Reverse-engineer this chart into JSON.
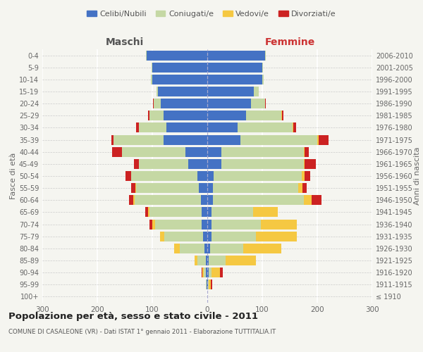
{
  "age_groups": [
    "100+",
    "95-99",
    "90-94",
    "85-89",
    "80-84",
    "75-79",
    "70-74",
    "65-69",
    "60-64",
    "55-59",
    "50-54",
    "45-49",
    "40-44",
    "35-39",
    "30-34",
    "25-29",
    "20-24",
    "15-19",
    "10-14",
    "5-9",
    "0-4"
  ],
  "birth_years": [
    "≤ 1910",
    "1911-1915",
    "1916-1920",
    "1921-1925",
    "1926-1930",
    "1931-1935",
    "1936-1940",
    "1941-1945",
    "1946-1950",
    "1951-1955",
    "1956-1960",
    "1961-1965",
    "1966-1970",
    "1971-1975",
    "1976-1980",
    "1981-1985",
    "1986-1990",
    "1991-1995",
    "1996-2000",
    "2001-2005",
    "2006-2010"
  ],
  "males": {
    "celibe": [
      0,
      1,
      2,
      3,
      5,
      8,
      10,
      10,
      12,
      15,
      18,
      35,
      40,
      80,
      75,
      80,
      85,
      90,
      100,
      100,
      110
    ],
    "coniugato": [
      0,
      2,
      5,
      15,
      45,
      70,
      85,
      95,
      120,
      115,
      120,
      90,
      115,
      90,
      50,
      25,
      12,
      2,
      2,
      1,
      1
    ],
    "vedovo": [
      0,
      0,
      2,
      5,
      10,
      8,
      5,
      3,
      2,
      1,
      1,
      0,
      0,
      0,
      0,
      0,
      0,
      0,
      0,
      0,
      0
    ],
    "divorziato": [
      0,
      0,
      1,
      0,
      0,
      0,
      5,
      5,
      8,
      8,
      10,
      8,
      18,
      5,
      5,
      3,
      2,
      0,
      0,
      0,
      0
    ]
  },
  "females": {
    "nubile": [
      0,
      1,
      3,
      3,
      5,
      8,
      8,
      8,
      10,
      10,
      12,
      25,
      25,
      60,
      55,
      70,
      80,
      85,
      100,
      100,
      105
    ],
    "coniugata": [
      0,
      2,
      5,
      30,
      60,
      80,
      90,
      75,
      165,
      155,
      160,
      150,
      150,
      140,
      100,
      65,
      25,
      8,
      2,
      1,
      1
    ],
    "vedova": [
      0,
      3,
      15,
      55,
      70,
      75,
      65,
      45,
      15,
      8,
      5,
      2,
      2,
      2,
      1,
      1,
      0,
      0,
      0,
      0,
      0
    ],
    "divorziata": [
      0,
      3,
      5,
      0,
      0,
      0,
      0,
      0,
      18,
      8,
      10,
      20,
      8,
      18,
      5,
      3,
      2,
      0,
      0,
      0,
      0
    ]
  },
  "colors": {
    "celibe": "#4472c4",
    "coniugato": "#c5d8a4",
    "vedovo": "#f5c842",
    "divorziato": "#cc2222"
  },
  "xlim": 300,
  "title": "Popolazione per età, sesso e stato civile - 2011",
  "subtitle": "COMUNE DI CASALEONE (VR) - Dati ISTAT 1° gennaio 2011 - Elaborazione TUTTITALIA.IT",
  "ylabel_left": "Fasce di età",
  "ylabel_right": "Anni di nascita",
  "xlabel_left": "Maschi",
  "xlabel_right": "Femmine",
  "bg_color": "#f5f5f0",
  "legend_labels": [
    "Celibi/Nubili",
    "Coniugati/e",
    "Vedovi/e",
    "Divorziati/e"
  ]
}
